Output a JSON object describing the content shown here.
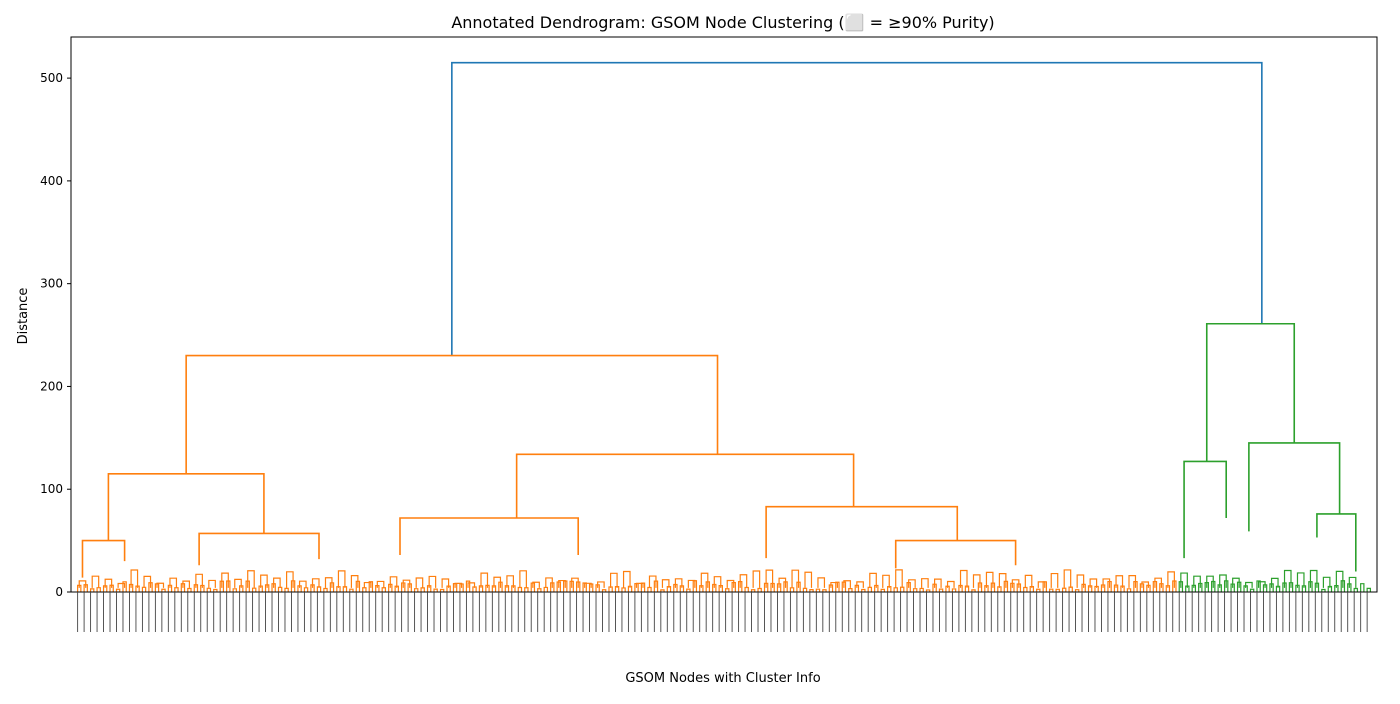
{
  "chart_data": {
    "type": "dendrogram",
    "title": "Annotated Dendrogram: GSOM Node Clustering (⬜ = ≥90% Purity)",
    "xlabel": "GSOM Nodes with Cluster Info",
    "ylabel": "Distance",
    "ylim": [
      0,
      540
    ],
    "yticks": [
      0,
      100,
      200,
      300,
      400,
      500
    ],
    "grid": false,
    "colors": {
      "root": "#1f77b4",
      "cluster_1": "#ff7f0e",
      "cluster_2": "#2ca02c",
      "axis": "#000000"
    },
    "leaf_count": 400,
    "x_domain": [
      0,
      400
    ],
    "links": [
      {
        "x1": 116,
        "x2": 366,
        "h1": 230,
        "h2": 261,
        "h": 515,
        "color": "root"
      },
      {
        "x1": 34,
        "x2": 198,
        "h1": 115,
        "h2": 134,
        "h": 230,
        "color": "cluster_1"
      },
      {
        "x1": 10,
        "x2": 58,
        "h1": 50,
        "h2": 57,
        "h": 115,
        "color": "cluster_1"
      },
      {
        "x1": 2,
        "x2": 15,
        "h1": 14,
        "h2": 30,
        "h": 50,
        "color": "cluster_1"
      },
      {
        "x1": 38,
        "x2": 75,
        "h1": 26,
        "h2": 32,
        "h": 57,
        "color": "cluster_1"
      },
      {
        "x1": 136,
        "x2": 240,
        "h1": 72,
        "h2": 83,
        "h": 134,
        "color": "cluster_1"
      },
      {
        "x1": 100,
        "x2": 155,
        "h1": 36,
        "h2": 36,
        "h": 72,
        "color": "cluster_1"
      },
      {
        "x1": 213,
        "x2": 272,
        "h1": 33,
        "h2": 50,
        "h": 83,
        "color": "cluster_1"
      },
      {
        "x1": 253,
        "x2": 290,
        "h1": 23,
        "h2": 26,
        "h": 50,
        "color": "cluster_1"
      },
      {
        "x1": 349,
        "x2": 376,
        "h1": 127,
        "h2": 145,
        "h": 261,
        "color": "cluster_2"
      },
      {
        "x1": 342,
        "x2": 355,
        "h1": 33,
        "h2": 72,
        "h": 127,
        "color": "cluster_2"
      },
      {
        "x1": 362,
        "x2": 390,
        "h1": 59,
        "h2": 76,
        "h": 145,
        "color": "cluster_2"
      },
      {
        "x1": 383,
        "x2": 395,
        "h1": 53,
        "h2": 20,
        "h": 76,
        "color": "cluster_2"
      }
    ]
  }
}
